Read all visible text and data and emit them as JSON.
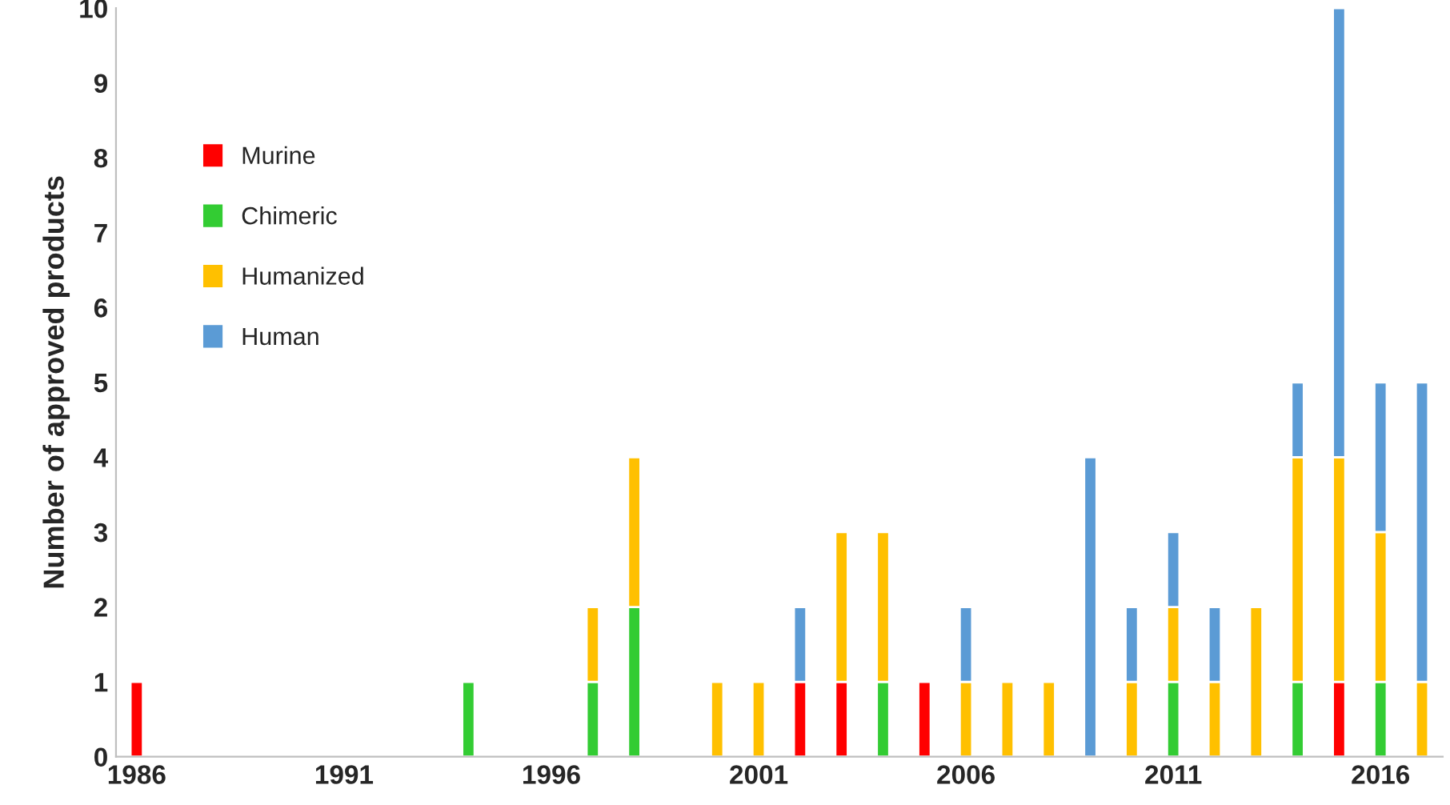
{
  "chart_data": {
    "type": "bar",
    "stacked": true,
    "ylabel": "Number of approved products",
    "categories": [
      "1986",
      null,
      null,
      null,
      null,
      "1991",
      null,
      null,
      null,
      null,
      "1996",
      null,
      null,
      null,
      null,
      "2001",
      null,
      null,
      null,
      null,
      "2006",
      null,
      null,
      null,
      null,
      "2011",
      null,
      null,
      null,
      null,
      "2016",
      null
    ],
    "series": [
      {
        "name": "Murine",
        "color": "#ff0000",
        "values": [
          1,
          null,
          null,
          null,
          null,
          null,
          null,
          null,
          null,
          null,
          null,
          null,
          null,
          null,
          null,
          null,
          1,
          1,
          null,
          1,
          null,
          null,
          null,
          null,
          null,
          null,
          null,
          null,
          null,
          1,
          null,
          null
        ]
      },
      {
        "name": "Chimeric",
        "color": "#33cc33",
        "values": [
          null,
          null,
          null,
          null,
          null,
          null,
          null,
          null,
          1,
          null,
          null,
          1,
          2,
          null,
          null,
          null,
          null,
          null,
          1,
          null,
          null,
          null,
          null,
          null,
          null,
          1,
          null,
          null,
          1,
          null,
          1,
          null
        ]
      },
      {
        "name": "Humanized",
        "color": "#ffc000",
        "values": [
          null,
          null,
          null,
          null,
          null,
          null,
          null,
          null,
          null,
          null,
          null,
          1,
          2,
          null,
          1,
          1,
          null,
          2,
          2,
          null,
          1,
          1,
          1,
          null,
          1,
          1,
          1,
          2,
          3,
          3,
          2,
          1
        ]
      },
      {
        "name": "Human",
        "color": "#5b9bd5",
        "values": [
          null,
          null,
          null,
          null,
          null,
          null,
          null,
          null,
          null,
          null,
          null,
          null,
          null,
          null,
          null,
          null,
          1,
          null,
          null,
          null,
          1,
          null,
          null,
          4,
          1,
          1,
          1,
          null,
          1,
          6,
          2,
          4
        ]
      }
    ],
    "ylim": [
      0,
      10
    ],
    "yticks": [
      0,
      1,
      2,
      3,
      4,
      5,
      6,
      7,
      8,
      9,
      10
    ],
    "grid": false,
    "legend": "left"
  }
}
